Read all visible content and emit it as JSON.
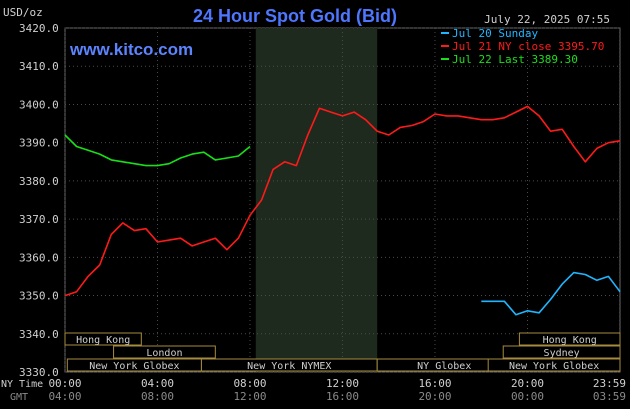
{
  "chart_data": {
    "type": "line",
    "title": "24 Hour Spot Gold (Bid)",
    "site": "www.kitco.com",
    "unit_label": "USD/oz",
    "timestamp": "July 22, 2025 07:55",
    "y_ticks": [
      "3420.0",
      "3410.0",
      "3400.0",
      "3390.0",
      "3380.0",
      "3370.0",
      "3360.0",
      "3350.0",
      "3340.0",
      "3330.0"
    ],
    "ylim": [
      3330,
      3420
    ],
    "xlim": [
      0,
      24
    ],
    "x_ticks_ny": [
      {
        "label": "00:00",
        "hour": 0
      },
      {
        "label": "04:00",
        "hour": 4
      },
      {
        "label": "08:00",
        "hour": 8
      },
      {
        "label": "12:00",
        "hour": 12
      },
      {
        "label": "16:00",
        "hour": 16
      },
      {
        "label": "20:00",
        "hour": 20
      },
      {
        "label": "23:59",
        "hour": 23.983
      }
    ],
    "x_ticks_gmt": [
      {
        "label": "04:00",
        "hour": 0
      },
      {
        "label": "08:00",
        "hour": 4
      },
      {
        "label": "12:00",
        "hour": 8
      },
      {
        "label": "16:00",
        "hour": 12
      },
      {
        "label": "20:00",
        "hour": 16
      },
      {
        "label": "00:00",
        "hour": 20
      },
      {
        "label": "03:59",
        "hour": 23.983
      }
    ],
    "x_axis_labels": {
      "ny": "NY Time",
      "gmt": "GMT"
    },
    "highlight_range_hours": [
      8.25,
      13.5
    ],
    "grid": true,
    "colors": {
      "background": "#000000",
      "grid": "#4a4a4a",
      "title": "#4e76ff",
      "site": "#5c84ff",
      "axis_text": "#d0d0d0",
      "gmt_text": "#8a8a8a",
      "highlight": "#1e2a1e",
      "session_fill": "#000000",
      "session_border": "#a68c3c",
      "session_text": "#cfcfcf"
    },
    "legend": [
      {
        "label": "Jul 20 Sunday",
        "color": "#1fb6ff"
      },
      {
        "label": "Jul 21 NY close 3395.70",
        "color": "#ff1a1a"
      },
      {
        "label": "Jul 22 Last 3389.30",
        "color": "#18e018"
      }
    ],
    "legend_position": "top-right",
    "sessions": [
      {
        "label": "Hong Kong",
        "row": 0,
        "start": -0.5,
        "end": 3.3
      },
      {
        "label": "London",
        "row": 1,
        "start": 2.1,
        "end": 6.5
      },
      {
        "label": "New York Globex",
        "row": 2,
        "start": 0.1,
        "end": 5.9
      },
      {
        "label": "New York NYMEX",
        "row": 2,
        "start": 5.9,
        "end": 13.5
      },
      {
        "label": "NY Globex",
        "row": 2,
        "start": 13.5,
        "end": 19.3
      },
      {
        "label": "Hong Kong",
        "row": 0,
        "start": 19.65,
        "end": 24.5
      },
      {
        "label": "Sydney",
        "row": 1,
        "start": 18.95,
        "end": 24.5
      },
      {
        "label": "New York Globex",
        "row": 2,
        "start": 18.3,
        "end": 24.5
      }
    ],
    "series": [
      {
        "name": "Jul 21 NY close 3395.70",
        "color": "#ff1a1a",
        "points": [
          [
            0.0,
            3350.0
          ],
          [
            0.5,
            3351.0
          ],
          [
            1.0,
            3355.0
          ],
          [
            1.5,
            3358.0
          ],
          [
            2.0,
            3366.0
          ],
          [
            2.5,
            3369.0
          ],
          [
            3.0,
            3367.0
          ],
          [
            3.5,
            3367.5
          ],
          [
            4.0,
            3364.0
          ],
          [
            4.5,
            3364.5
          ],
          [
            5.0,
            3365.0
          ],
          [
            5.5,
            3363.0
          ],
          [
            6.0,
            3364.0
          ],
          [
            6.5,
            3365.0
          ],
          [
            7.0,
            3362.0
          ],
          [
            7.5,
            3365.0
          ],
          [
            8.0,
            3371.0
          ],
          [
            8.5,
            3375.0
          ],
          [
            9.0,
            3383.0
          ],
          [
            9.5,
            3385.0
          ],
          [
            10.0,
            3384.0
          ],
          [
            10.5,
            3392.0
          ],
          [
            11.0,
            3399.0
          ],
          [
            11.5,
            3398.0
          ],
          [
            12.0,
            3397.0
          ],
          [
            12.5,
            3398.0
          ],
          [
            13.0,
            3396.0
          ],
          [
            13.5,
            3393.0
          ],
          [
            14.0,
            3392.0
          ],
          [
            14.5,
            3394.0
          ],
          [
            15.0,
            3394.5
          ],
          [
            15.5,
            3395.5
          ],
          [
            16.0,
            3397.5
          ],
          [
            16.5,
            3397.0
          ],
          [
            17.0,
            3397.0
          ],
          [
            17.5,
            3396.5
          ],
          [
            18.0,
            3396.0
          ],
          [
            18.5,
            3396.0
          ],
          [
            19.0,
            3396.5
          ],
          [
            19.5,
            3398.0
          ],
          [
            20.0,
            3399.5
          ],
          [
            20.5,
            3397.0
          ],
          [
            21.0,
            3393.0
          ],
          [
            21.5,
            3393.5
          ],
          [
            22.0,
            3389.0
          ],
          [
            22.5,
            3385.0
          ],
          [
            23.0,
            3388.5
          ],
          [
            23.5,
            3390.0
          ],
          [
            24.0,
            3390.5
          ]
        ]
      },
      {
        "name": "Jul 22 Last 3389.30",
        "color": "#18e018",
        "points": [
          [
            0.0,
            3392.0
          ],
          [
            0.5,
            3389.0
          ],
          [
            1.0,
            3388.0
          ],
          [
            1.5,
            3387.0
          ],
          [
            2.0,
            3385.5
          ],
          [
            2.5,
            3385.0
          ],
          [
            3.0,
            3384.5
          ],
          [
            3.5,
            3384.0
          ],
          [
            4.0,
            3384.0
          ],
          [
            4.5,
            3384.5
          ],
          [
            5.0,
            3386.0
          ],
          [
            5.5,
            3387.0
          ],
          [
            6.0,
            3387.5
          ],
          [
            6.5,
            3385.5
          ],
          [
            7.0,
            3386.0
          ],
          [
            7.5,
            3386.5
          ],
          [
            8.0,
            3389.0
          ]
        ]
      },
      {
        "name": "Jul 20 Sunday",
        "color": "#1fb6ff",
        "points": [
          [
            18.0,
            3348.5
          ],
          [
            18.5,
            3348.5
          ],
          [
            19.0,
            3348.5
          ],
          [
            19.5,
            3345.0
          ],
          [
            20.0,
            3346.0
          ],
          [
            20.5,
            3345.5
          ],
          [
            21.0,
            3349.0
          ],
          [
            21.5,
            3353.0
          ],
          [
            22.0,
            3356.0
          ],
          [
            22.5,
            3355.5
          ],
          [
            23.0,
            3354.0
          ],
          [
            23.5,
            3355.0
          ],
          [
            24.0,
            3351.0
          ]
        ]
      }
    ]
  }
}
